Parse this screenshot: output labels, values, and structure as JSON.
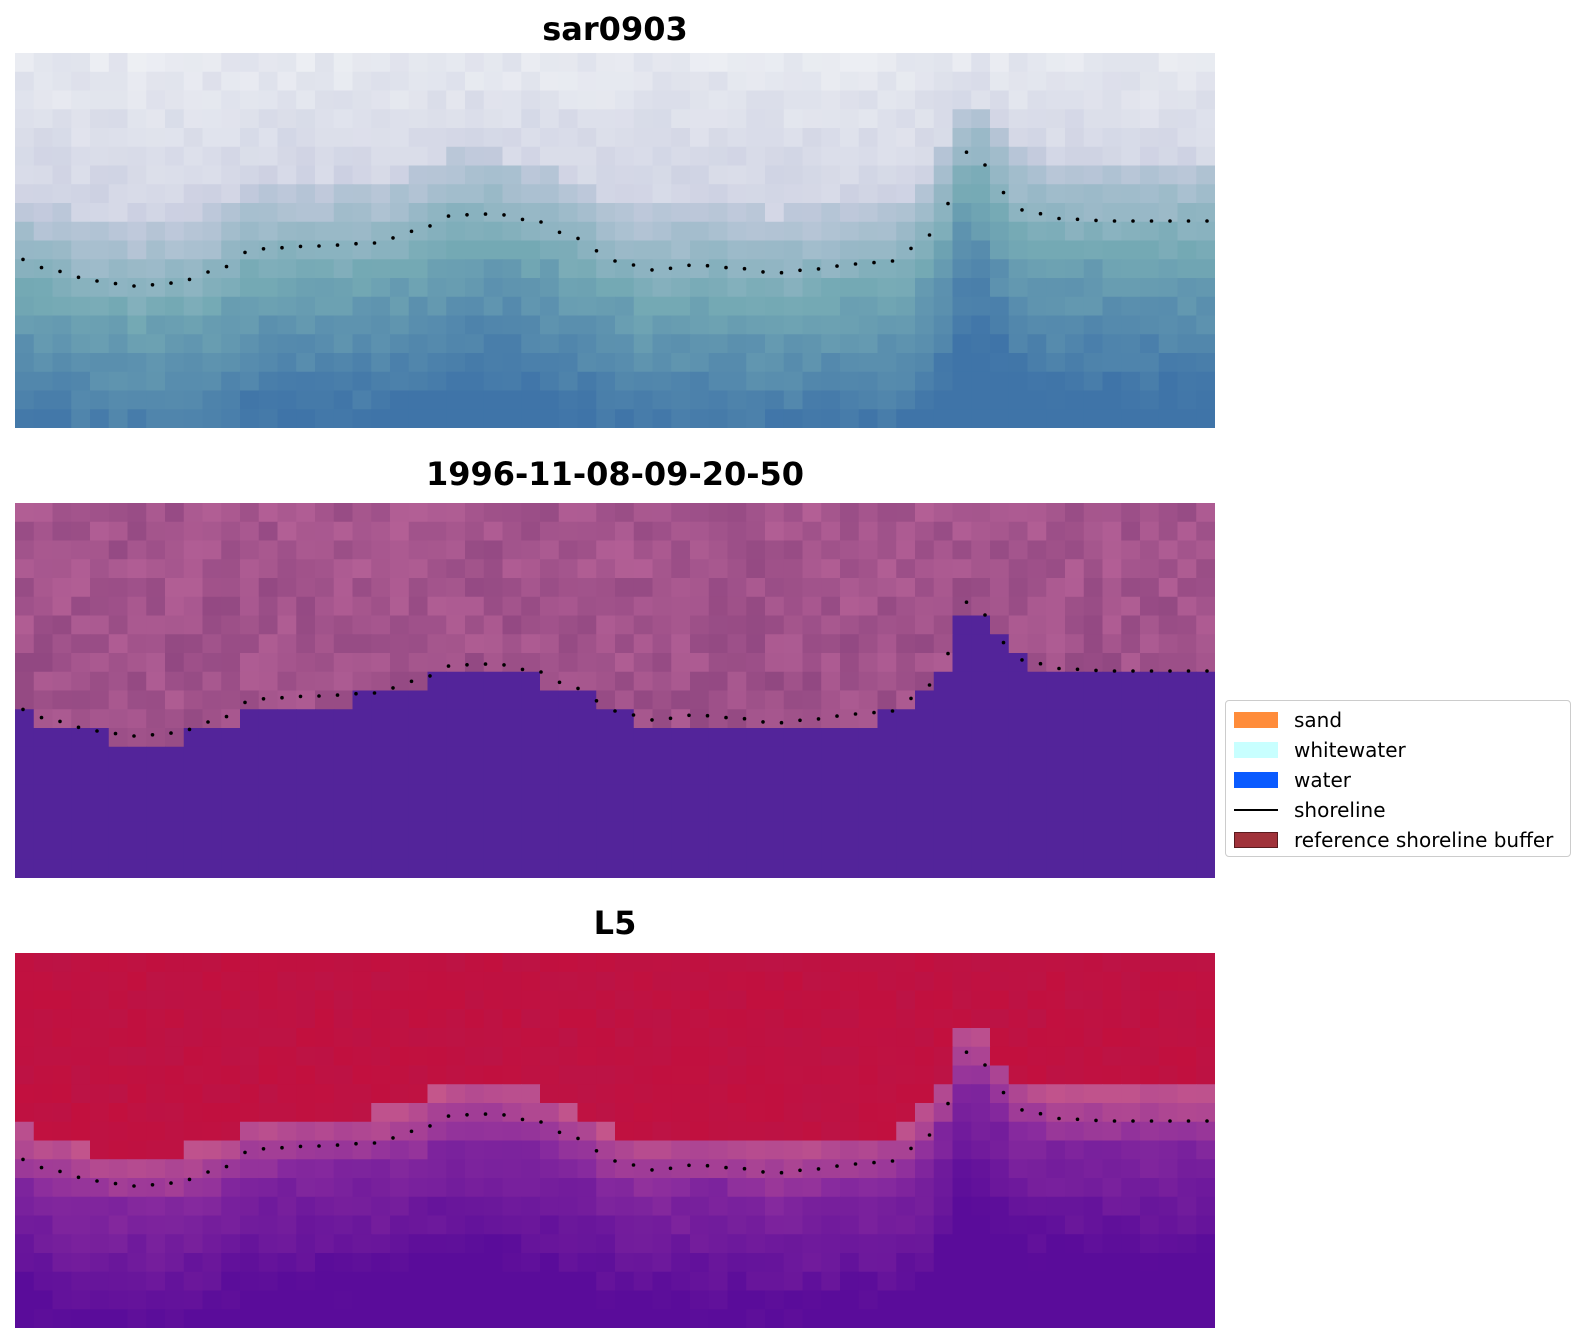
{
  "panels": [
    {
      "title": "sar0903",
      "style": "sar"
    },
    {
      "title": "1996-11-08-09-20-50",
      "style": "classified"
    },
    {
      "title": "L5",
      "style": "index"
    }
  ],
  "legend": {
    "items": [
      {
        "label": "sand",
        "kind": "patch",
        "color": "#ff8c3a"
      },
      {
        "label": "whitewater",
        "kind": "patch",
        "color": "#c8ffff"
      },
      {
        "label": "water",
        "kind": "patch",
        "color": "#0a5bff"
      },
      {
        "label": "shoreline",
        "kind": "line",
        "color": "#000000"
      },
      {
        "label": "reference shoreline buffer",
        "kind": "patch",
        "color": "#a0323a"
      }
    ]
  },
  "colors": {
    "sar_sky": "#d6d8e6",
    "sar_water": "#4a7fb0",
    "classified_land": "#a4548a",
    "classified_water": "#53249a",
    "index_top": "#c0103e",
    "index_bottom": "#6a1296",
    "shoreline": "#000000"
  }
}
